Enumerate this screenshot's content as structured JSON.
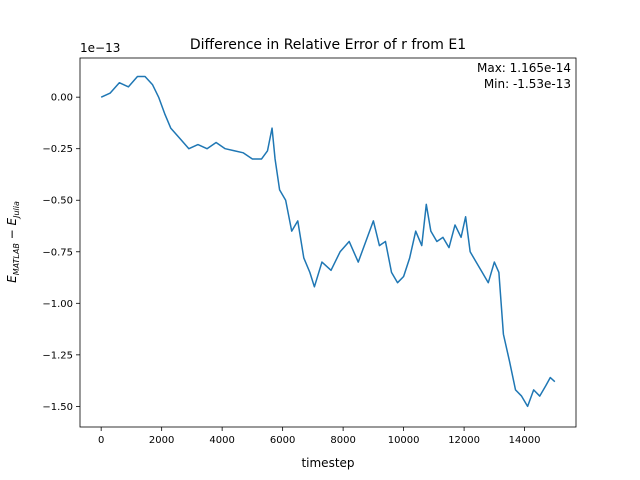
{
  "chart_data": {
    "type": "line",
    "title": "Difference in Relative Error of r from E1",
    "xlabel": "timestep",
    "ylabel_main": "E",
    "ylabel_sub1": "MATLAB",
    "ylabel_minus": " − ",
    "ylabel_sub2": "Julia",
    "offset_label": "1e−13",
    "xlim": [
      -700,
      15700
    ],
    "ylim": [
      -1.6,
      0.19
    ],
    "x_ticks": [
      0,
      2000,
      4000,
      6000,
      8000,
      10000,
      12000,
      14000
    ],
    "x_tick_labels": [
      "0",
      "2000",
      "4000",
      "6000",
      "8000",
      "10000",
      "12000",
      "14000"
    ],
    "y_ticks": [
      0.0,
      -0.25,
      -0.5,
      -0.75,
      -1.0,
      -1.25,
      -1.5
    ],
    "y_tick_labels": [
      "0.00",
      "−0.25",
      "−0.50",
      "−0.75",
      "−1.00",
      "−1.25",
      "−1.50"
    ],
    "grid": false,
    "legend": "none",
    "annotation_max": "Max: 1.165e-14",
    "annotation_min": "Min: -1.53e-13",
    "color": "#1f77b4",
    "series": [
      {
        "x": [
          0,
          300,
          600,
          900,
          1200,
          1450,
          1700,
          1900,
          2100,
          2300,
          2600,
          2900,
          3200,
          3500,
          3800,
          4100,
          4400,
          4700,
          5000,
          5300,
          5500,
          5650,
          5750,
          5900,
          6100,
          6300,
          6500,
          6700,
          6900,
          7050,
          7300,
          7600,
          7900,
          8200,
          8500,
          8800,
          9000,
          9200,
          9400,
          9600,
          9800,
          10000,
          10200,
          10400,
          10600,
          10750,
          10900,
          11100,
          11300,
          11500,
          11700,
          11900,
          12050,
          12200,
          12400,
          12600,
          12800,
          13000,
          13150,
          13300,
          13500,
          13700,
          13900,
          14100,
          14300,
          14500,
          14700,
          14850,
          15000
        ],
        "values": [
          0.0,
          0.02,
          0.07,
          0.05,
          0.1,
          0.1,
          0.06,
          0.0,
          -0.08,
          -0.15,
          -0.2,
          -0.25,
          -0.23,
          -0.25,
          -0.22,
          -0.25,
          -0.26,
          -0.27,
          -0.3,
          -0.3,
          -0.26,
          -0.15,
          -0.3,
          -0.45,
          -0.5,
          -0.65,
          -0.6,
          -0.78,
          -0.85,
          -0.92,
          -0.8,
          -0.84,
          -0.75,
          -0.7,
          -0.8,
          -0.68,
          -0.6,
          -0.72,
          -0.7,
          -0.85,
          -0.9,
          -0.87,
          -0.78,
          -0.65,
          -0.72,
          -0.52,
          -0.65,
          -0.7,
          -0.68,
          -0.73,
          -0.62,
          -0.68,
          -0.58,
          -0.75,
          -0.8,
          -0.85,
          -0.9,
          -0.8,
          -0.85,
          -1.15,
          -1.28,
          -1.42,
          -1.45,
          -1.5,
          -1.42,
          -1.45,
          -1.4,
          -1.36,
          -1.38
        ]
      }
    ]
  }
}
